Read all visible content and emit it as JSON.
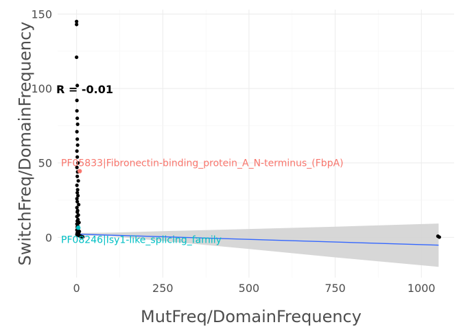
{
  "chart_data": {
    "type": "scatter",
    "xlabel": "MutFreq/DomainFrequency",
    "ylabel": "SwitchFreq/DomainFrequency",
    "xlim": [
      -55,
      1095
    ],
    "ylim": [
      -27,
      153
    ],
    "xticks": [
      0,
      250,
      500,
      750,
      1000
    ],
    "yticks": [
      0,
      50,
      100,
      150
    ],
    "grid": true,
    "correlation_label": "R = -0.01",
    "points": [
      {
        "x": 0,
        "y": 145
      },
      {
        "x": 0,
        "y": 143
      },
      {
        "x": 0,
        "y": 121
      },
      {
        "x": 2,
        "y": 102
      },
      {
        "x": 1,
        "y": 92
      },
      {
        "x": 1,
        "y": 85
      },
      {
        "x": 2,
        "y": 80
      },
      {
        "x": 3,
        "y": 76
      },
      {
        "x": 1,
        "y": 71
      },
      {
        "x": 2,
        "y": 66
      },
      {
        "x": 3,
        "y": 62
      },
      {
        "x": 1,
        "y": 58
      },
      {
        "x": 2,
        "y": 54
      },
      {
        "x": 4,
        "y": 50
      },
      {
        "x": 1,
        "y": 47
      },
      {
        "x": 3,
        "y": 44
      },
      {
        "x": 2,
        "y": 41
      },
      {
        "x": 5,
        "y": 38
      },
      {
        "x": 1,
        "y": 35
      },
      {
        "x": 3,
        "y": 32
      },
      {
        "x": 2,
        "y": 30
      },
      {
        "x": 4,
        "y": 28
      },
      {
        "x": 1,
        "y": 26
      },
      {
        "x": 2,
        "y": 24
      },
      {
        "x": 6,
        "y": 22
      },
      {
        "x": 1,
        "y": 20
      },
      {
        "x": 3,
        "y": 18
      },
      {
        "x": 2,
        "y": 17
      },
      {
        "x": 5,
        "y": 15
      },
      {
        "x": 1,
        "y": 14
      },
      {
        "x": 4,
        "y": 12
      },
      {
        "x": 2,
        "y": 11
      },
      {
        "x": 7,
        "y": 10
      },
      {
        "x": 1,
        "y": 9
      },
      {
        "x": 3,
        "y": 8
      },
      {
        "x": 2,
        "y": 7
      },
      {
        "x": 5,
        "y": 6
      },
      {
        "x": 1,
        "y": 5
      },
      {
        "x": 8,
        "y": 4
      },
      {
        "x": 3,
        "y": 3.5
      },
      {
        "x": 2,
        "y": 3
      },
      {
        "x": 6,
        "y": 2.5
      },
      {
        "x": 1,
        "y": 2
      },
      {
        "x": 4,
        "y": 1.5
      },
      {
        "x": 9,
        "y": 1
      },
      {
        "x": 12,
        "y": 0.8
      },
      {
        "x": 15,
        "y": 0.5
      },
      {
        "x": 18,
        "y": 0.3
      },
      {
        "x": 1048,
        "y": 0.8
      },
      {
        "x": 1052,
        "y": 0.2
      }
    ],
    "highlighted_points": [
      {
        "x": 9,
        "y": 44.5,
        "label": "PF05833|Fibronectin-binding_protein_A_N-terminus_(FbpA)",
        "color": "#F8766D",
        "label_y": 50
      },
      {
        "x": 5,
        "y": 6.5,
        "label": "PF08246|Isy1-like_splicing_family",
        "color": "#00BFC4",
        "label_y": -1.5
      }
    ],
    "fit_line": {
      "x": [
        0,
        1050
      ],
      "y": [
        2.2,
        -5.2
      ],
      "color": "#3366FF"
    },
    "confidence_band": {
      "x": [
        0,
        100,
        250,
        500,
        750,
        1050
      ],
      "upper": [
        3.0,
        3.2,
        4.2,
        5.6,
        7.2,
        9.3
      ],
      "lower": [
        1.4,
        0.8,
        -2.4,
        -7.8,
        -13.4,
        -19.8
      ],
      "color": "#d3d3d3"
    }
  }
}
